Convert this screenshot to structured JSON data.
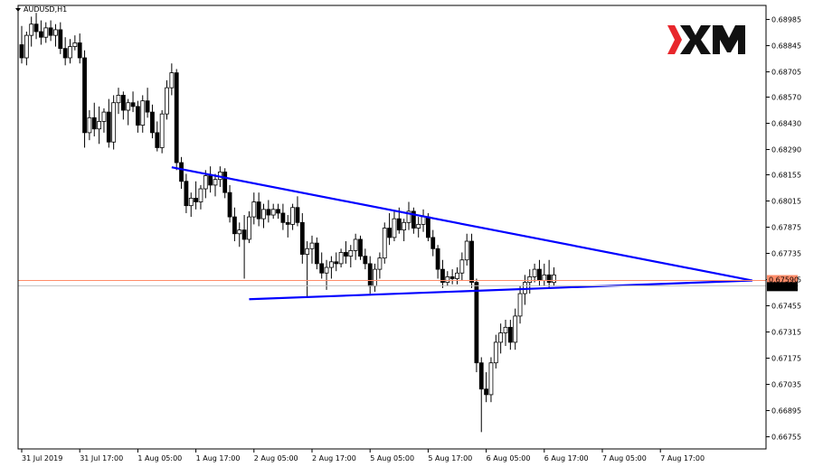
{
  "chart_info": {
    "symbol_label": "AUDUSD,H1",
    "watermark_text": "XM",
    "current_price": "0.67562",
    "ask_price": "0.67590"
  },
  "colors": {
    "bull_body": "#ffffff",
    "bear_body": "#000000",
    "trendline": "#0000ff",
    "price_line": "#ff8c69",
    "logo_red": "#e8262c"
  },
  "chart_data": {
    "type": "candlestick",
    "title": "AUDUSD,H1",
    "ylim": [
      0.6669,
      0.6906
    ],
    "y_ticks": [
      "0.68985",
      "0.68845",
      "0.68705",
      "0.68570",
      "0.68430",
      "0.68290",
      "0.68155",
      "0.68015",
      "0.67875",
      "0.67735",
      "0.67595",
      "0.67455",
      "0.67315",
      "0.67175",
      "0.67035",
      "0.66895",
      "0.66755"
    ],
    "x_ticks": [
      "31 Jul 2019",
      "31 Jul 17:00",
      "1 Aug 05:00",
      "1 Aug 17:00",
      "2 Aug 05:00",
      "2 Aug 17:00",
      "5 Aug 05:00",
      "5 Aug 17:00",
      "6 Aug 05:00",
      "6 Aug 17:00",
      "7 Aug 05:00",
      "7 Aug 17:00"
    ],
    "candles": [
      [
        0.6885,
        0.6895,
        0.6875,
        0.6878
      ],
      [
        0.6878,
        0.6892,
        0.6874,
        0.689
      ],
      [
        0.689,
        0.69,
        0.6884,
        0.6896
      ],
      [
        0.6896,
        0.6902,
        0.6888,
        0.6892
      ],
      [
        0.6892,
        0.6898,
        0.6885,
        0.6889
      ],
      [
        0.6889,
        0.6897,
        0.6886,
        0.6894
      ],
      [
        0.6894,
        0.6898,
        0.6887,
        0.689
      ],
      [
        0.689,
        0.6896,
        0.6884,
        0.6893
      ],
      [
        0.6893,
        0.6897,
        0.688,
        0.6883
      ],
      [
        0.6883,
        0.6889,
        0.6874,
        0.6878
      ],
      [
        0.6878,
        0.6888,
        0.6875,
        0.6884
      ],
      [
        0.6884,
        0.689,
        0.6882,
        0.6886
      ],
      [
        0.6886,
        0.6891,
        0.6875,
        0.6878
      ],
      [
        0.6878,
        0.6882,
        0.683,
        0.6838
      ],
      [
        0.6838,
        0.685,
        0.6834,
        0.6846
      ],
      [
        0.6846,
        0.6854,
        0.6836,
        0.684
      ],
      [
        0.684,
        0.6852,
        0.6832,
        0.6844
      ],
      [
        0.6844,
        0.6851,
        0.6838,
        0.6849
      ],
      [
        0.6849,
        0.6856,
        0.683,
        0.6833
      ],
      [
        0.6833,
        0.6858,
        0.6829,
        0.6854
      ],
      [
        0.6854,
        0.6862,
        0.6848,
        0.6858
      ],
      [
        0.6858,
        0.686,
        0.6845,
        0.685
      ],
      [
        0.685,
        0.6856,
        0.6842,
        0.6854
      ],
      [
        0.6854,
        0.686,
        0.6849,
        0.6852
      ],
      [
        0.6852,
        0.6855,
        0.6838,
        0.6842
      ],
      [
        0.6842,
        0.6858,
        0.6838,
        0.6855
      ],
      [
        0.6855,
        0.6862,
        0.6846,
        0.6849
      ],
      [
        0.6849,
        0.6853,
        0.6835,
        0.6838
      ],
      [
        0.6838,
        0.6844,
        0.6828,
        0.683
      ],
      [
        0.683,
        0.685,
        0.6827,
        0.6848
      ],
      [
        0.6848,
        0.6866,
        0.6845,
        0.6862
      ],
      [
        0.6862,
        0.6875,
        0.6858,
        0.687
      ],
      [
        0.687,
        0.6872,
        0.6818,
        0.6822
      ],
      [
        0.6822,
        0.6825,
        0.6808,
        0.6812
      ],
      [
        0.6812,
        0.6816,
        0.6795,
        0.6799
      ],
      [
        0.6799,
        0.6806,
        0.6793,
        0.6803
      ],
      [
        0.6803,
        0.6812,
        0.6797,
        0.6801
      ],
      [
        0.6801,
        0.681,
        0.6797,
        0.6808
      ],
      [
        0.6808,
        0.6818,
        0.6803,
        0.6815
      ],
      [
        0.6815,
        0.682,
        0.6806,
        0.681
      ],
      [
        0.681,
        0.6816,
        0.6804,
        0.6813
      ],
      [
        0.6813,
        0.682,
        0.6809,
        0.6817
      ],
      [
        0.6817,
        0.6819,
        0.6803,
        0.6806
      ],
      [
        0.6806,
        0.681,
        0.679,
        0.6793
      ],
      [
        0.6793,
        0.6798,
        0.678,
        0.6784
      ],
      [
        0.6784,
        0.679,
        0.6777,
        0.6786
      ],
      [
        0.6786,
        0.6794,
        0.676,
        0.6781
      ],
      [
        0.6781,
        0.6796,
        0.6779,
        0.6793
      ],
      [
        0.6793,
        0.6806,
        0.6789,
        0.6801
      ],
      [
        0.6801,
        0.6806,
        0.6788,
        0.6792
      ],
      [
        0.6792,
        0.68,
        0.6787,
        0.6797
      ],
      [
        0.6797,
        0.6802,
        0.679,
        0.6794
      ],
      [
        0.6794,
        0.68,
        0.6792,
        0.6797
      ],
      [
        0.6797,
        0.68,
        0.6792,
        0.6795
      ],
      [
        0.6795,
        0.68,
        0.6786,
        0.679
      ],
      [
        0.679,
        0.6794,
        0.6782,
        0.6789
      ],
      [
        0.6789,
        0.68,
        0.6786,
        0.6798
      ],
      [
        0.6798,
        0.6804,
        0.6788,
        0.679
      ],
      [
        0.679,
        0.6795,
        0.6768,
        0.6773
      ],
      [
        0.6773,
        0.678,
        0.675,
        0.6776
      ],
      [
        0.6776,
        0.6783,
        0.6768,
        0.6779
      ],
      [
        0.6779,
        0.6782,
        0.6765,
        0.6768
      ],
      [
        0.6768,
        0.6774,
        0.676,
        0.6763
      ],
      [
        0.6763,
        0.677,
        0.6754,
        0.6766
      ],
      [
        0.6766,
        0.6772,
        0.676,
        0.6769
      ],
      [
        0.6769,
        0.6774,
        0.6764,
        0.6768
      ],
      [
        0.6768,
        0.6776,
        0.6766,
        0.6774
      ],
      [
        0.6774,
        0.678,
        0.6768,
        0.6772
      ],
      [
        0.6772,
        0.6778,
        0.6766,
        0.6775
      ],
      [
        0.6775,
        0.6784,
        0.677,
        0.6781
      ],
      [
        0.6781,
        0.6783,
        0.677,
        0.6772
      ],
      [
        0.6772,
        0.6776,
        0.6765,
        0.6768
      ],
      [
        0.6768,
        0.6772,
        0.6752,
        0.6756
      ],
      [
        0.6756,
        0.6768,
        0.6753,
        0.6765
      ],
      [
        0.6765,
        0.6774,
        0.676,
        0.6771
      ],
      [
        0.6771,
        0.679,
        0.6768,
        0.6787
      ],
      [
        0.6787,
        0.6795,
        0.6778,
        0.6782
      ],
      [
        0.6782,
        0.6796,
        0.678,
        0.6792
      ],
      [
        0.6792,
        0.6798,
        0.6784,
        0.6786
      ],
      [
        0.6786,
        0.6792,
        0.678,
        0.679
      ],
      [
        0.679,
        0.6801,
        0.6786,
        0.6796
      ],
      [
        0.6796,
        0.6798,
        0.6784,
        0.6787
      ],
      [
        0.6787,
        0.6793,
        0.6782,
        0.6789
      ],
      [
        0.6789,
        0.6797,
        0.6785,
        0.6793
      ],
      [
        0.6793,
        0.6795,
        0.678,
        0.6782
      ],
      [
        0.6782,
        0.6786,
        0.6772,
        0.6776
      ],
      [
        0.6776,
        0.6778,
        0.676,
        0.6765
      ],
      [
        0.6765,
        0.677,
        0.6755,
        0.6758
      ],
      [
        0.6758,
        0.6764,
        0.6756,
        0.6761
      ],
      [
        0.6761,
        0.6765,
        0.6757,
        0.676
      ],
      [
        0.676,
        0.6766,
        0.6757,
        0.6763
      ],
      [
        0.6763,
        0.6774,
        0.6759,
        0.677
      ],
      [
        0.677,
        0.6784,
        0.6767,
        0.678
      ],
      [
        0.678,
        0.6784,
        0.6755,
        0.6758
      ],
      [
        0.6758,
        0.676,
        0.671,
        0.6715
      ],
      [
        0.6715,
        0.6718,
        0.6678,
        0.6701
      ],
      [
        0.6701,
        0.671,
        0.6694,
        0.6698
      ],
      [
        0.6698,
        0.6718,
        0.6694,
        0.6715
      ],
      [
        0.6715,
        0.673,
        0.6712,
        0.6726
      ],
      [
        0.6726,
        0.6736,
        0.672,
        0.6731
      ],
      [
        0.6731,
        0.6738,
        0.6724,
        0.6734
      ],
      [
        0.6734,
        0.6738,
        0.6722,
        0.6726
      ],
      [
        0.6726,
        0.6744,
        0.6722,
        0.674
      ],
      [
        0.674,
        0.6756,
        0.6736,
        0.6752
      ],
      [
        0.6752,
        0.6762,
        0.6746,
        0.6758
      ],
      [
        0.6758,
        0.6765,
        0.6752,
        0.6761
      ],
      [
        0.6761,
        0.6768,
        0.6758,
        0.6765
      ],
      [
        0.6765,
        0.677,
        0.6756,
        0.6759
      ],
      [
        0.6759,
        0.6768,
        0.6756,
        0.6762
      ],
      [
        0.6762,
        0.677,
        0.6755,
        0.6758
      ],
      [
        0.6758,
        0.6766,
        0.6756,
        0.6762
      ]
    ],
    "trendlines": [
      {
        "from": {
          "index": 31,
          "price": 0.68195
        },
        "to": {
          "index": 151,
          "price": 0.6759
        }
      },
      {
        "from": {
          "index": 47,
          "price": 0.6749
        },
        "to": {
          "index": 151,
          "price": 0.6759
        }
      }
    ],
    "grid": false
  }
}
